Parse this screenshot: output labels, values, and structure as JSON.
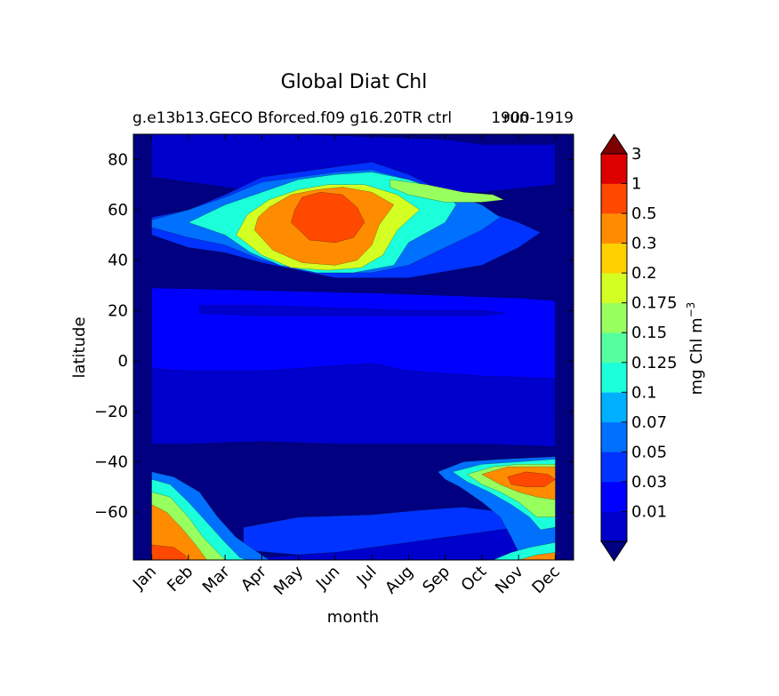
{
  "chart_data": {
    "type": "heatmap",
    "title": "Global Diat Chl",
    "subtitle_left": "g.e13b13.GECO Bforced.f09 g16.20TR ctrl",
    "subtitle_overlap": "run",
    "subtitle_right": "1900-1919",
    "xlabel": "month",
    "ylabel": "latitude",
    "x_ticks": [
      "Jan",
      "Feb",
      "Mar",
      "Apr",
      "May",
      "Jun",
      "Jul",
      "Aug",
      "Sep",
      "Oct",
      "Nov",
      "Dec"
    ],
    "y_ticks": [
      80,
      60,
      40,
      20,
      0,
      -20,
      -40,
      -60
    ],
    "y_tick_labels": [
      "80",
      "60",
      "40",
      "20",
      "0",
      "−20",
      "−40",
      "−60"
    ],
    "ylim": [
      -79,
      90
    ],
    "colorbar": {
      "label": "mg Chl m",
      "label_exponent": "−3",
      "levels": [
        "0.01",
        "0.03",
        "0.05",
        "0.07",
        "0.1",
        "0.125",
        "0.15",
        "0.175",
        "0.2",
        "0.3",
        "0.5",
        "1",
        "3"
      ],
      "colors": [
        "#000080",
        "#0000cd",
        "#0000ff",
        "#0033ff",
        "#0070ff",
        "#00b0ff",
        "#1cffdb",
        "#55ff9f",
        "#97ff5e",
        "#d4ff23",
        "#ffd000",
        "#ff8c00",
        "#ff4800",
        "#dd0000",
        "#7f0000"
      ]
    },
    "regions": [
      {
        "level": 2,
        "points": [
          [
            0,
            29
          ],
          [
            3,
            28
          ],
          [
            6,
            27
          ],
          [
            8,
            26
          ],
          [
            10,
            25
          ],
          [
            11,
            24
          ],
          [
            11,
            -22
          ],
          [
            9,
            -25
          ],
          [
            6,
            -26
          ],
          [
            4,
            -26
          ],
          [
            2,
            -25
          ],
          [
            0,
            -25
          ]
        ]
      },
      {
        "level": 1,
        "points": [
          [
            0,
            -3
          ],
          [
            1,
            -4
          ],
          [
            3,
            -4
          ],
          [
            4,
            -3
          ],
          [
            6,
            -1
          ],
          [
            7,
            -4
          ],
          [
            9,
            -6
          ],
          [
            11,
            -7
          ],
          [
            11,
            -34
          ],
          [
            9,
            -33
          ],
          [
            7,
            -33
          ],
          [
            5,
            -33
          ],
          [
            3,
            -32
          ],
          [
            1,
            -33
          ],
          [
            0,
            -33
          ]
        ]
      },
      {
        "level": 1,
        "points": [
          [
            1.3,
            22
          ],
          [
            3,
            22
          ],
          [
            5,
            21
          ],
          [
            7,
            20
          ],
          [
            9,
            20
          ],
          [
            9.6,
            19
          ],
          [
            9,
            18
          ],
          [
            7,
            18
          ],
          [
            5,
            18
          ],
          [
            3,
            18
          ],
          [
            1.3,
            19
          ]
        ]
      },
      {
        "level": 1,
        "points": [
          [
            0,
            90
          ],
          [
            4,
            90
          ],
          [
            6,
            89
          ],
          [
            8,
            88
          ],
          [
            9,
            86
          ],
          [
            11,
            86
          ],
          [
            11,
            70
          ],
          [
            9,
            67
          ],
          [
            7,
            66
          ],
          [
            5,
            66
          ],
          [
            3,
            67
          ],
          [
            1,
            71
          ],
          [
            0,
            73
          ]
        ]
      },
      {
        "level": 3,
        "points": [
          [
            2.5,
            -66
          ],
          [
            4,
            -62
          ],
          [
            6,
            -61
          ],
          [
            7.5,
            -59
          ],
          [
            8.5,
            -58
          ],
          [
            9.6,
            -60
          ],
          [
            10,
            -67
          ],
          [
            8,
            -70
          ],
          [
            6,
            -75
          ],
          [
            4,
            -77
          ],
          [
            2.5,
            -75
          ]
        ]
      },
      {
        "level": 1,
        "points": [
          [
            0,
            -79
          ],
          [
            11,
            -79
          ],
          [
            11,
            -64
          ],
          [
            9,
            -68
          ],
          [
            7,
            -72
          ],
          [
            5,
            -76
          ],
          [
            3,
            -78
          ],
          [
            0,
            -78
          ]
        ]
      },
      {
        "level": 3,
        "points": [
          [
            0,
            50
          ],
          [
            1,
            45
          ],
          [
            2,
            43
          ],
          [
            3,
            39
          ],
          [
            4,
            36
          ],
          [
            5,
            33
          ],
          [
            7,
            33
          ],
          [
            9,
            38
          ],
          [
            10,
            45
          ],
          [
            10.6,
            51
          ],
          [
            10,
            55
          ],
          [
            9,
            60
          ],
          [
            8,
            67
          ],
          [
            7,
            74
          ],
          [
            6,
            79
          ],
          [
            4.5,
            76
          ],
          [
            3,
            73
          ],
          [
            2,
            66
          ],
          [
            1,
            60
          ],
          [
            0,
            57
          ]
        ]
      },
      {
        "level": 4,
        "points": [
          [
            0,
            53
          ],
          [
            1,
            49
          ],
          [
            2,
            46
          ],
          [
            3,
            40
          ],
          [
            4,
            37
          ],
          [
            5,
            35
          ],
          [
            6,
            35
          ],
          [
            7,
            38
          ],
          [
            8,
            45
          ],
          [
            9,
            52
          ],
          [
            9.5,
            57
          ],
          [
            9,
            62
          ],
          [
            8,
            67
          ],
          [
            7,
            72
          ],
          [
            6,
            76
          ],
          [
            5,
            75
          ],
          [
            4,
            73
          ],
          [
            3,
            71
          ],
          [
            2,
            65
          ],
          [
            1,
            60
          ],
          [
            0,
            56
          ]
        ]
      },
      {
        "level": 6,
        "points": [
          [
            1,
            55
          ],
          [
            2,
            50
          ],
          [
            2.7,
            43
          ],
          [
            3.5,
            38
          ],
          [
            4.5,
            35
          ],
          [
            5.5,
            35
          ],
          [
            6.6,
            38
          ],
          [
            7,
            47
          ],
          [
            8,
            55
          ],
          [
            8.3,
            62
          ],
          [
            8,
            67
          ],
          [
            7,
            72
          ],
          [
            6,
            75
          ],
          [
            5,
            74
          ],
          [
            4,
            72
          ],
          [
            3,
            67
          ],
          [
            2,
            62
          ]
        ]
      },
      {
        "level": 9,
        "points": [
          [
            2.3,
            50
          ],
          [
            3,
            42
          ],
          [
            3.8,
            37
          ],
          [
            4.8,
            36
          ],
          [
            5.7,
            37
          ],
          [
            6.3,
            42
          ],
          [
            6.7,
            52
          ],
          [
            7.3,
            60
          ],
          [
            6.7,
            66
          ],
          [
            5.8,
            70
          ],
          [
            4.8,
            70
          ],
          [
            4,
            68
          ],
          [
            3.2,
            64
          ],
          [
            2.6,
            58
          ]
        ]
      },
      {
        "level": 11,
        "points": [
          [
            2.8,
            52
          ],
          [
            3.3,
            44
          ],
          [
            4.1,
            39
          ],
          [
            5,
            38
          ],
          [
            5.6,
            40
          ],
          [
            6,
            46
          ],
          [
            6.2,
            54
          ],
          [
            6.6,
            62
          ],
          [
            6,
            67
          ],
          [
            5.2,
            69
          ],
          [
            4.5,
            68
          ],
          [
            3.8,
            66
          ],
          [
            3.2,
            61
          ],
          [
            2.9,
            57
          ]
        ]
      },
      {
        "level": 12,
        "points": [
          [
            3.8,
            55
          ],
          [
            4.3,
            48
          ],
          [
            5,
            47
          ],
          [
            5.5,
            49
          ],
          [
            5.8,
            55
          ],
          [
            5.6,
            61
          ],
          [
            5.2,
            66
          ],
          [
            4.6,
            67
          ],
          [
            4.1,
            65
          ],
          [
            3.9,
            60
          ]
        ]
      },
      {
        "level": 8,
        "points": [
          [
            6.5,
            72
          ],
          [
            7.5,
            70
          ],
          [
            8.5,
            67
          ],
          [
            9.3,
            66
          ],
          [
            9.6,
            64
          ],
          [
            9,
            63
          ],
          [
            8,
            63
          ],
          [
            7,
            66
          ],
          [
            6.5,
            69
          ]
        ]
      },
      {
        "level": 4,
        "points": [
          [
            7.8,
            -44
          ],
          [
            8.5,
            -40
          ],
          [
            9.5,
            -39
          ],
          [
            11,
            -38
          ],
          [
            11,
            -72
          ],
          [
            10.5,
            -75
          ],
          [
            10,
            -76
          ],
          [
            9.8,
            -70
          ],
          [
            9.5,
            -62
          ],
          [
            9,
            -56
          ],
          [
            8.4,
            -50
          ],
          [
            8,
            -47
          ]
        ]
      },
      {
        "level": 6,
        "points": [
          [
            8.2,
            -44
          ],
          [
            9,
            -41
          ],
          [
            10,
            -40
          ],
          [
            11,
            -39
          ],
          [
            11,
            -66
          ],
          [
            10.6,
            -67
          ],
          [
            10.3,
            -62
          ],
          [
            9.8,
            -57
          ],
          [
            9.2,
            -52
          ],
          [
            8.6,
            -48
          ]
        ]
      },
      {
        "level": 8,
        "points": [
          [
            8.6,
            -45
          ],
          [
            9.3,
            -42
          ],
          [
            10,
            -41
          ],
          [
            11,
            -41
          ],
          [
            11,
            -62
          ],
          [
            10.5,
            -62
          ],
          [
            10,
            -56
          ],
          [
            9.5,
            -52
          ],
          [
            9,
            -49
          ]
        ]
      },
      {
        "level": 11,
        "points": [
          [
            9,
            -45
          ],
          [
            9.7,
            -42
          ],
          [
            10.5,
            -42
          ],
          [
            11,
            -42
          ],
          [
            11,
            -55
          ],
          [
            10.5,
            -54
          ],
          [
            10,
            -52
          ],
          [
            9.5,
            -49
          ]
        ]
      },
      {
        "level": 12,
        "points": [
          [
            9.7,
            -46
          ],
          [
            10.2,
            -44
          ],
          [
            10.8,
            -45
          ],
          [
            11,
            -47
          ],
          [
            10.7,
            -50
          ],
          [
            10.2,
            -50
          ],
          [
            9.8,
            -49
          ]
        ]
      },
      {
        "level": 6,
        "points": [
          [
            9.3,
            -79
          ],
          [
            9.8,
            -76
          ],
          [
            10.3,
            -74
          ],
          [
            11,
            -72
          ],
          [
            11,
            -79
          ]
        ]
      },
      {
        "level": 11,
        "points": [
          [
            10,
            -79
          ],
          [
            10.5,
            -77
          ],
          [
            11,
            -76
          ],
          [
            11,
            -79
          ]
        ]
      },
      {
        "level": 4,
        "points": [
          [
            0,
            -44
          ],
          [
            0.6,
            -46
          ],
          [
            1.3,
            -52
          ],
          [
            1.8,
            -62
          ],
          [
            2.3,
            -70
          ],
          [
            2.8,
            -75
          ],
          [
            3.2,
            -79
          ],
          [
            0,
            -79
          ]
        ]
      },
      {
        "level": 6,
        "points": [
          [
            0,
            -47
          ],
          [
            0.5,
            -49
          ],
          [
            1,
            -56
          ],
          [
            1.5,
            -64
          ],
          [
            2,
            -72
          ],
          [
            2.4,
            -78
          ],
          [
            2.6,
            -79
          ],
          [
            0,
            -79
          ]
        ]
      },
      {
        "level": 8,
        "points": [
          [
            0,
            -52
          ],
          [
            0.5,
            -54
          ],
          [
            1,
            -62
          ],
          [
            1.4,
            -70
          ],
          [
            1.8,
            -76
          ],
          [
            2,
            -79
          ],
          [
            0,
            -79
          ]
        ]
      },
      {
        "level": 11,
        "points": [
          [
            0,
            -57
          ],
          [
            0.4,
            -60
          ],
          [
            0.8,
            -66
          ],
          [
            1.2,
            -73
          ],
          [
            1.5,
            -79
          ],
          [
            0,
            -79
          ]
        ]
      },
      {
        "level": 12,
        "points": [
          [
            0,
            -73
          ],
          [
            0.6,
            -74
          ],
          [
            0.9,
            -77
          ],
          [
            1,
            -79
          ],
          [
            0,
            -79
          ]
        ]
      }
    ]
  }
}
